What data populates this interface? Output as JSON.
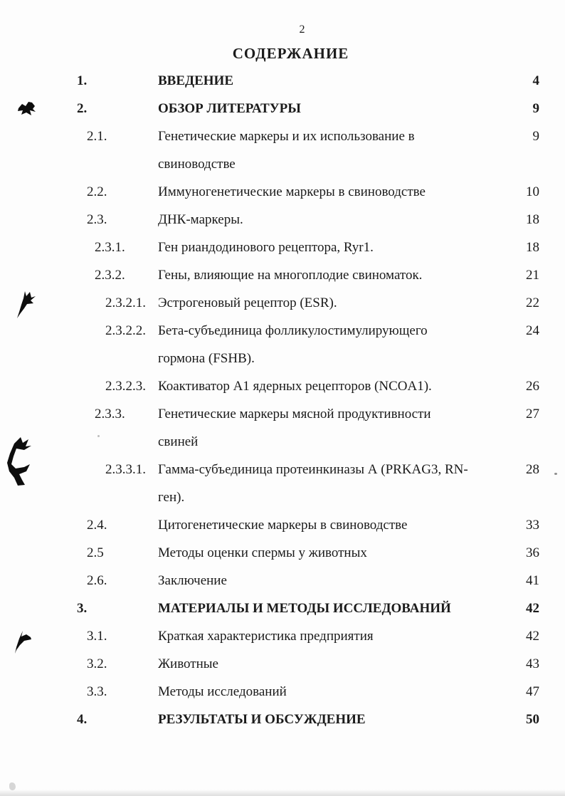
{
  "page": {
    "number": "2",
    "title": "СОДЕРЖАНИЕ"
  },
  "colors": {
    "text": "#1b1b1b",
    "background": "#fdfdfd"
  },
  "artifacts": {
    "ink_blots": [
      "ink-blot-1",
      "ink-blot-2",
      "ink-blot-3",
      "ink-blot-4"
    ],
    "speck_after_page_28": "·"
  },
  "toc": {
    "entries": [
      {
        "num": "1.",
        "level": 1,
        "bold": true,
        "lines": [
          "ВВЕДЕНИЕ"
        ],
        "page": "4"
      },
      {
        "num": "2.",
        "level": 1,
        "bold": true,
        "lines": [
          "ОБЗОР ЛИТЕРАТУРЫ"
        ],
        "page": "9"
      },
      {
        "num": "2.1.",
        "level": 2,
        "bold": false,
        "lines": [
          "Генетические маркеры и их использование в",
          "свиноводстве"
        ],
        "page": "9"
      },
      {
        "num": "2.2.",
        "level": 2,
        "bold": false,
        "lines": [
          "Иммуногенетические маркеры в свиноводстве"
        ],
        "page": "10"
      },
      {
        "num": "2.3.",
        "level": 2,
        "bold": false,
        "lines": [
          "ДНК-маркеры."
        ],
        "page": "18"
      },
      {
        "num": "2.3.1.",
        "level": 3,
        "bold": false,
        "lines": [
          "Ген риандодинового рецептора, Ryr1."
        ],
        "page": "18"
      },
      {
        "num": "2.3.2.",
        "level": 3,
        "bold": false,
        "lines": [
          "Гены, влияющие на многоплодие свиноматок."
        ],
        "page": "21"
      },
      {
        "num": "2.3.2.1.",
        "level": 4,
        "bold": false,
        "lines": [
          "Эстрогеновый рецептор (ESR)."
        ],
        "page": "22"
      },
      {
        "num": "2.3.2.2.",
        "level": 4,
        "bold": false,
        "lines": [
          "Бета-субъединица фолликулостимулирующего",
          "гормона (FSHB)."
        ],
        "page": "24"
      },
      {
        "num": "2.3.2.3.",
        "level": 4,
        "bold": false,
        "lines": [
          "Коактиватор А1 ядерных рецепторов (NCOA1)."
        ],
        "page": "26"
      },
      {
        "num": "2.3.3.",
        "level": 3,
        "bold": false,
        "lines": [
          "Генетические маркеры мясной продуктивности",
          "свиней"
        ],
        "page": "27"
      },
      {
        "num": "2.3.3.1.",
        "level": 4,
        "bold": false,
        "lines": [
          "Гамма-субъединица протеинкиназы А (PRKAG3, RN-",
          "ген)."
        ],
        "page": "28"
      },
      {
        "num": "2.4.",
        "level": 2,
        "bold": false,
        "lines": [
          "Цитогенетические маркеры  в свиноводстве"
        ],
        "page": "33"
      },
      {
        "num": "2.5",
        "level": 2,
        "bold": false,
        "lines": [
          "Методы оценки спермы у животных"
        ],
        "page": "36"
      },
      {
        "num": "2.6.",
        "level": 2,
        "bold": false,
        "lines": [
          "Заключение"
        ],
        "page": "41"
      },
      {
        "num": "3.",
        "level": 1,
        "bold": true,
        "lines": [
          "МАТЕРИАЛЫ И МЕТОДЫ ИССЛЕДОВАНИЙ"
        ],
        "page": "42"
      },
      {
        "num": "3.1.",
        "level": 2,
        "bold": false,
        "lines": [
          "Краткая характеристика предприятия"
        ],
        "page": "42"
      },
      {
        "num": "3.2.",
        "level": 2,
        "bold": false,
        "lines": [
          "Животные"
        ],
        "page": "43"
      },
      {
        "num": "3.3.",
        "level": 2,
        "bold": false,
        "lines": [
          "Методы исследований"
        ],
        "page": "47"
      },
      {
        "num": "4.",
        "level": 1,
        "bold": true,
        "lines": [
          "РЕЗУЛЬТАТЫ И ОБСУЖДЕНИЕ"
        ],
        "page": "50"
      }
    ]
  }
}
